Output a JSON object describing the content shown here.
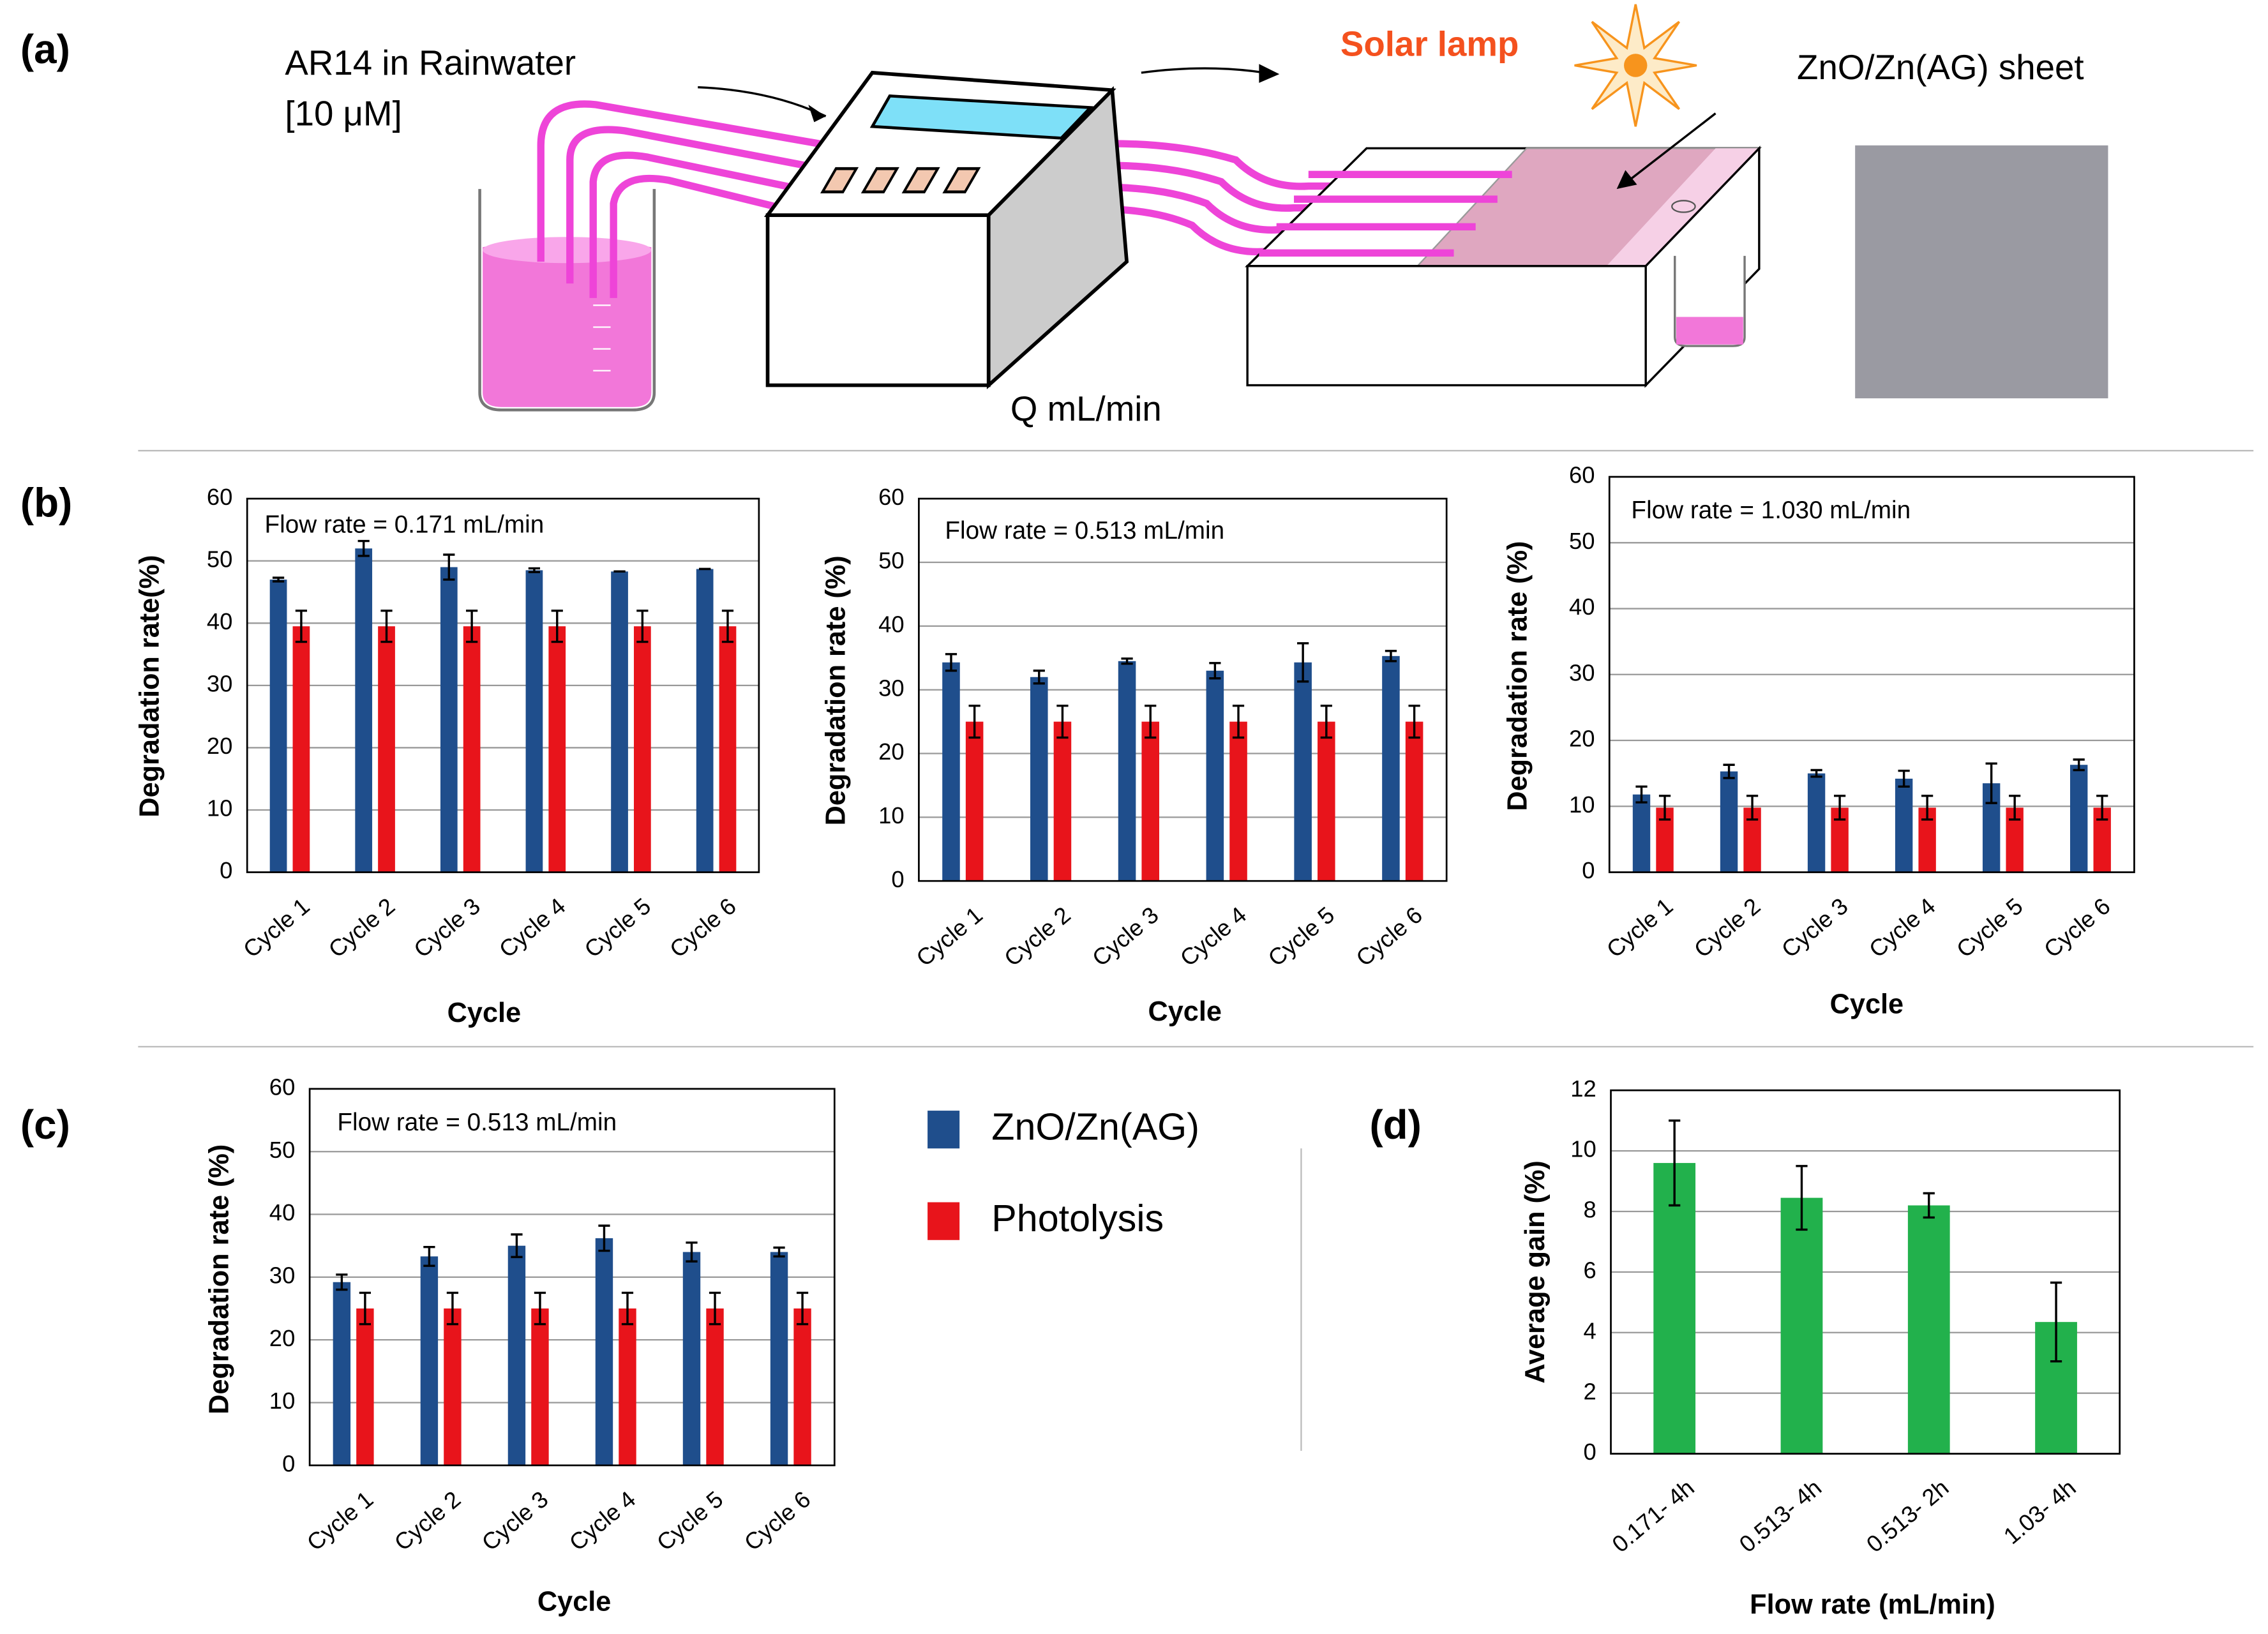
{
  "panels": [
    "(a)",
    "(b)",
    "(c)",
    "(d)"
  ],
  "schematic": {
    "inlet": "AR14  in Rainwater",
    "concentration": "[10 μM]",
    "flow": "Q mL/min",
    "lamp": "Solar lamp",
    "sheet": "ZnO/Zn(AG)  sheet"
  },
  "chart_data": [
    {
      "type": "bar",
      "annotation": "Flow rate = 0.171 mL/min",
      "ylabel": "Degradation rate(%)",
      "xlabel": "Cycle",
      "categories": [
        "Cycle 1",
        "Cycle 2",
        "Cycle 3",
        "Cycle 4",
        "Cycle 5",
        "Cycle 6"
      ],
      "ylim": [
        0,
        60
      ],
      "yticks": [
        0,
        10,
        20,
        30,
        40,
        50,
        60
      ],
      "grid": true,
      "series": [
        {
          "name": "ZnO/Zn(AG)",
          "color": "#1f4e8c",
          "values": [
            47,
            52,
            49,
            48.5,
            48.3,
            48.7
          ],
          "errors": [
            0.3,
            1.2,
            2,
            0.3,
            0,
            0
          ]
        },
        {
          "name": "Photolysis",
          "color": "#e8141b",
          "values": [
            39.5,
            39.5,
            39.5,
            39.5,
            39.5,
            39.5
          ],
          "errors": [
            2.5,
            2.5,
            2.5,
            2.5,
            2.5,
            2.5
          ]
        }
      ]
    },
    {
      "type": "bar",
      "annotation": "Flow rate = 0.513 mL/min",
      "ylabel": "Degradation rate (%)",
      "xlabel": "Cycle",
      "categories": [
        "Cycle 1",
        "Cycle 2",
        "Cycle 3",
        "Cycle 4",
        "Cycle 5",
        "Cycle 6"
      ],
      "ylim": [
        0,
        60
      ],
      "yticks": [
        0,
        10,
        20,
        30,
        40,
        50,
        60
      ],
      "grid": true,
      "series": [
        {
          "name": "ZnO/Zn(AG)",
          "color": "#1f4e8c",
          "values": [
            34.3,
            32,
            34.5,
            33,
            34.3,
            35.3
          ],
          "errors": [
            1.3,
            1,
            0.4,
            1.2,
            3,
            0.8
          ]
        },
        {
          "name": "Photolysis",
          "color": "#e8141b",
          "values": [
            25,
            25,
            25,
            25,
            25,
            25
          ],
          "errors": [
            2.5,
            2.5,
            2.5,
            2.5,
            2.5,
            2.5
          ]
        }
      ]
    },
    {
      "type": "bar",
      "annotation": "Flow rate = 1.030 mL/min",
      "ylabel": "Degradation rate (%)",
      "xlabel": "Cycle",
      "categories": [
        "Cycle 1",
        "Cycle 2",
        "Cycle 3",
        "Cycle 4",
        "Cycle 5",
        "Cycle 6"
      ],
      "ylim": [
        0,
        60
      ],
      "yticks": [
        0,
        10,
        20,
        30,
        40,
        50,
        60
      ],
      "grid": true,
      "series": [
        {
          "name": "ZnO/Zn(AG)",
          "color": "#1f4e8c",
          "values": [
            11.8,
            15.3,
            15,
            14.2,
            13.5,
            16.3
          ],
          "errors": [
            1.2,
            1,
            0.5,
            1.2,
            3,
            0.8
          ]
        },
        {
          "name": "Photolysis",
          "color": "#e8141b",
          "values": [
            9.8,
            9.8,
            9.8,
            9.8,
            9.8,
            9.8
          ],
          "errors": [
            1.8,
            1.8,
            1.8,
            1.8,
            1.8,
            1.8
          ]
        }
      ]
    },
    {
      "type": "bar",
      "annotation": "Flow rate = 0.513 mL/min",
      "ylabel": "Degradation rate (%)",
      "xlabel": "Cycle",
      "categories": [
        "Cycle 1",
        "Cycle 2",
        "Cycle 3",
        "Cycle 4",
        "Cycle 5",
        "Cycle 6"
      ],
      "ylim": [
        0,
        60
      ],
      "yticks": [
        0,
        10,
        20,
        30,
        40,
        50,
        60
      ],
      "grid": true,
      "legend": "right",
      "series": [
        {
          "name": "ZnO/Zn(AG)",
          "color": "#1f4e8c",
          "values": [
            29.2,
            33.3,
            35,
            36.2,
            34,
            34
          ],
          "errors": [
            1.2,
            1.5,
            1.8,
            2,
            1.5,
            0.7
          ]
        },
        {
          "name": "Photolysis",
          "color": "#e8141b",
          "values": [
            25,
            25,
            25,
            25,
            25,
            25
          ],
          "errors": [
            2.5,
            2.5,
            2.5,
            2.5,
            2.5,
            2.5
          ]
        }
      ]
    },
    {
      "type": "bar",
      "ylabel": "Average gain (%)",
      "xlabel": "Flow rate (mL/min)",
      "categories": [
        "0.171- 4h",
        "0.513- 4h",
        "0.513- 2h",
        "1.03- 4h"
      ],
      "ylim": [
        0,
        12
      ],
      "yticks": [
        0,
        2,
        4,
        6,
        8,
        10,
        12
      ],
      "grid": true,
      "color": "#22b14c",
      "values": [
        9.6,
        8.45,
        8.2,
        4.35
      ],
      "errors": [
        1.4,
        1.05,
        0.4,
        1.3
      ]
    }
  ]
}
